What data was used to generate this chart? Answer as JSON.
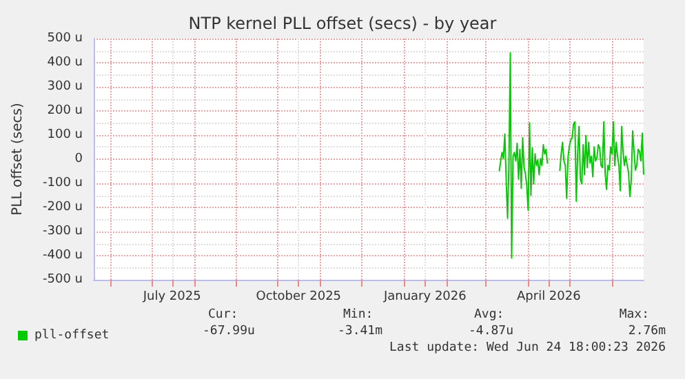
{
  "chart_data": {
    "type": "line",
    "title": "NTP kernel PLL offset (secs) - by year",
    "ylabel": "PLL offset (secs)",
    "series": [
      {
        "name": "pll-offset",
        "color": "#00cc00",
        "x": [
          "2026-03-11",
          "2026-03-12",
          "2026-03-13",
          "2026-03-14",
          "2026-03-15",
          "2026-03-16",
          "2026-03-17",
          "2026-03-18",
          "2026-03-19",
          "2026-03-20",
          "2026-03-21",
          "2026-03-22",
          "2026-03-23",
          "2026-03-24",
          "2026-03-25",
          "2026-03-26",
          "2026-03-27",
          "2026-03-28",
          "2026-03-29",
          "2026-03-30",
          "2026-03-31",
          "2026-04-01",
          "2026-04-02",
          "2026-04-03",
          "2026-04-04",
          "2026-04-05",
          "2026-04-06",
          "2026-04-07",
          "2026-04-08",
          "2026-04-09",
          "2026-04-10",
          "2026-04-11",
          "2026-04-12",
          "2026-04-13",
          "2026-04-14",
          "2026-04-15",
          "2026-04-20",
          "2026-04-24",
          "2026-04-25",
          "2026-04-26",
          "2026-04-27",
          "2026-04-28",
          "2026-04-29",
          "2026-04-30",
          "2026-05-01",
          "2026-05-02",
          "2026-05-03",
          "2026-05-04",
          "2026-05-05",
          "2026-05-06",
          "2026-05-07",
          "2026-05-08",
          "2026-05-09",
          "2026-05-10",
          "2026-05-11",
          "2026-05-12",
          "2026-05-13",
          "2026-05-14",
          "2026-05-15",
          "2026-05-16",
          "2026-05-17",
          "2026-05-18",
          "2026-05-19",
          "2026-05-20",
          "2026-05-21",
          "2026-05-22",
          "2026-05-23",
          "2026-05-24",
          "2026-05-25",
          "2026-05-26",
          "2026-05-27",
          "2026-05-28",
          "2026-05-29",
          "2026-05-30",
          "2026-05-31",
          "2026-06-01",
          "2026-06-02",
          "2026-06-03",
          "2026-06-04",
          "2026-06-05",
          "2026-06-06",
          "2026-06-07",
          "2026-06-08",
          "2026-06-09",
          "2026-06-10",
          "2026-06-11",
          "2026-06-12",
          "2026-06-13",
          "2026-06-14",
          "2026-06-15",
          "2026-06-16",
          "2026-06-17",
          "2026-06-18",
          "2026-06-19",
          "2026-06-20",
          "2026-06-21",
          "2026-06-22",
          "2026-06-23",
          "2026-06-24"
        ],
        "values": [
          -50,
          -7,
          28,
          3,
          104,
          -83,
          -245,
          -26,
          441,
          -410,
          12,
          28,
          -7,
          66,
          -83,
          41,
          -121,
          89,
          -35,
          -60,
          -111,
          -212,
          150,
          -150,
          47,
          -102,
          22,
          -26,
          -3,
          -64,
          3,
          -26,
          60,
          22,
          41,
          -18,
          null,
          -49,
          22,
          70,
          -7,
          -26,
          -162,
          9,
          55,
          79,
          89,
          146,
          155,
          -174,
          22,
          136,
          -83,
          -102,
          60,
          -64,
          98,
          -35,
          70,
          -16,
          12,
          -73,
          51,
          -7,
          3,
          60,
          47,
          -26,
          -35,
          155,
          -60,
          -125,
          -26,
          -45,
          51,
          22,
          155,
          -26,
          70,
          12,
          -26,
          -131,
          136,
          32,
          -26,
          12,
          -26,
          -54,
          -155,
          -83,
          117,
          32,
          -45,
          -26,
          41,
          32,
          -7,
          108,
          -64
        ]
      }
    ],
    "xlim": [
      "2025-05-20",
      "2026-06-24"
    ],
    "xticks": [
      {
        "value": "2025-06-01",
        "label": null
      },
      {
        "value": "2025-07-01",
        "label": null
      },
      {
        "value": "2025-07-16",
        "label": "July 2025"
      },
      {
        "value": "2025-08-01",
        "label": null
      },
      {
        "value": "2025-09-01",
        "label": null
      },
      {
        "value": "2025-10-01",
        "label": null
      },
      {
        "value": "2025-10-16",
        "label": "October 2025"
      },
      {
        "value": "2025-11-01",
        "label": null
      },
      {
        "value": "2025-12-01",
        "label": null
      },
      {
        "value": "2026-01-01",
        "label": null
      },
      {
        "value": "2026-01-16",
        "label": "January 2026"
      },
      {
        "value": "2026-02-01",
        "label": null
      },
      {
        "value": "2026-03-01",
        "label": null
      },
      {
        "value": "2026-04-01",
        "label": null
      },
      {
        "value": "2026-04-16",
        "label": "April 2026"
      },
      {
        "value": "2026-05-01",
        "label": null
      },
      {
        "value": "2026-06-01",
        "label": null
      }
    ],
    "ylim": [
      -500,
      500
    ],
    "yticks": [
      {
        "value": -500,
        "label": "-500 u"
      },
      {
        "value": -400,
        "label": "-400 u"
      },
      {
        "value": -300,
        "label": "-300 u"
      },
      {
        "value": -200,
        "label": "-200 u"
      },
      {
        "value": -100,
        "label": "-100 u"
      },
      0,
      {
        "value": 100,
        "label": "100 u"
      },
      {
        "value": 200,
        "label": "200 u"
      },
      {
        "value": 300,
        "label": "300 u"
      },
      {
        "value": 400,
        "label": "400 u"
      },
      {
        "value": 500,
        "label": "500 u"
      }
    ],
    "grid": true,
    "legend": "bottom left",
    "marker": "none",
    "line_style": "solid",
    "annotations": [
      "Cur:",
      "Min:",
      "Avg:",
      "Max:",
      "-67.99u",
      "-3.41m",
      "-4.87u",
      "2.76m",
      "Last update: Wed Jun 24 18:00:23 2026"
    ]
  }
}
